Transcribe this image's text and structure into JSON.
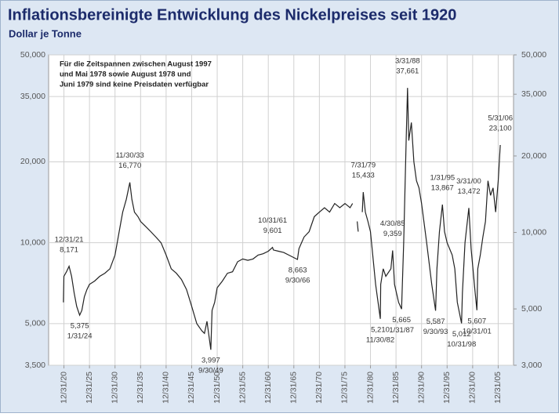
{
  "chart_data": {
    "type": "line",
    "title": "Inflationsbereinigte Entwicklung des Nickelpreises seit 1920",
    "subtitle": "Dollar je Tonne",
    "note": [
      "Für die Zeitspannen zwischen August 1997",
      "und Mai 1978 sowie August 1978 und",
      "Juni 1979 sind keine Preisdaten verfügbar"
    ],
    "log_scale": true,
    "grid": true,
    "xlim": [
      1918,
      2009
    ],
    "xticks": [
      {
        "value": 1921.0,
        "label": "12/31/20"
      },
      {
        "value": 1926.0,
        "label": "12/31/25"
      },
      {
        "value": 1931.0,
        "label": "12/31/30"
      },
      {
        "value": 1936.0,
        "label": "12/31/35"
      },
      {
        "value": 1941.0,
        "label": "12/31/40"
      },
      {
        "value": 1946.0,
        "label": "12/31/45"
      },
      {
        "value": 1951.0,
        "label": "12/31/50"
      },
      {
        "value": 1956.0,
        "label": "12/31/55"
      },
      {
        "value": 1961.0,
        "label": "12/31/60"
      },
      {
        "value": 1966.0,
        "label": "12/31/65"
      },
      {
        "value": 1971.0,
        "label": "12/31/70"
      },
      {
        "value": 1976.0,
        "label": "12/31/75"
      },
      {
        "value": 1981.0,
        "label": "12/31/80"
      },
      {
        "value": 1986.0,
        "label": "12/31/85"
      },
      {
        "value": 1991.0,
        "label": "12/31/90"
      },
      {
        "value": 1996.0,
        "label": "12/31/95"
      },
      {
        "value": 2001.0,
        "label": "12/31/00"
      },
      {
        "value": 2006.0,
        "label": "12/31/05"
      }
    ],
    "ylim": [
      3500,
      50000
    ],
    "yticks": [
      {
        "value": 3500,
        "label": "3,500"
      },
      {
        "value": 5000,
        "label": "5,000"
      },
      {
        "value": 10000,
        "label": "10,000"
      },
      {
        "value": 20000,
        "label": "20,000"
      },
      {
        "value": 35000,
        "label": "35,000"
      },
      {
        "value": 50000,
        "label": "50,000"
      }
    ],
    "y2lim": [
      3000,
      50000
    ],
    "y2ticks": [
      {
        "value": 3000,
        "label": "3,000"
      },
      {
        "value": 5000,
        "label": "5,000"
      },
      {
        "value": 10000,
        "label": "10,000"
      },
      {
        "value": 20000,
        "label": "20,000"
      },
      {
        "value": 35000,
        "label": "35,000"
      },
      {
        "value": 50000,
        "label": "50,000"
      }
    ],
    "series": [
      {
        "color": "#222222",
        "x": [
          1920.9,
          1921.0,
          1921.5,
          1922.0,
          1922.5,
          1923.0,
          1923.5,
          1924.08,
          1924.5,
          1925.0,
          1925.5,
          1926.0,
          1927.0,
          1928.0,
          1929.0,
          1930.0,
          1931.0,
          1932.0,
          1932.5,
          1933.2,
          1933.9,
          1934.3,
          1934.8,
          1935.5,
          1936.0,
          1937.0,
          1938.0,
          1939.0,
          1940.0,
          1941.0,
          1942.0,
          1943.0,
          1944.0,
          1945.0,
          1946.0,
          1947.0,
          1948.0,
          1948.5,
          1949.0,
          1949.75,
          1950.0,
          1950.5,
          1951.0,
          1952.0,
          1953.0,
          1954.0,
          1955.0,
          1956.0,
          1957.0,
          1958.0,
          1959.0,
          1960.0,
          1961.0,
          1961.83,
          1962.0,
          1963.0,
          1964.0,
          1965.0,
          1966.7,
          1967.0,
          1968.0,
          1969.0,
          1970.0,
          1971.0,
          1972.0,
          1973.0,
          1974.0,
          1975.0,
          1976.0,
          1977.0,
          1977.5,
          null,
          1978.4,
          1978.6,
          null,
          1979.4,
          1979.58,
          1980.0,
          1980.5,
          1981.0,
          1982.0,
          1982.92,
          1983.0,
          1983.5,
          1984.0,
          1985.0,
          1985.33,
          1985.7,
          1986.5,
          1987.08,
          1987.5,
          1988.0,
          1988.25,
          1988.5,
          1989.0,
          1989.5,
          1990.0,
          1990.5,
          1991.0,
          1992.0,
          1993.0,
          1993.75,
          1994.0,
          1994.5,
          1995.08,
          1995.5,
          1996.0,
          1997.0,
          1997.5,
          1998.0,
          1998.83,
          1999.0,
          1999.5,
          2000.25,
          2000.7,
          2001.5,
          2001.83,
          2002.0,
          2002.5,
          2003.0,
          2003.5,
          2004.0,
          2004.5,
          2005.0,
          2005.5,
          2006.0,
          2006.41
        ],
        "values": [
          6000,
          7500,
          7800,
          8171,
          7500,
          6500,
          5800,
          5375,
          5600,
          6300,
          6700,
          7000,
          7200,
          7500,
          7700,
          8000,
          9000,
          11500,
          13000,
          14500,
          16770,
          14500,
          13000,
          12500,
          12000,
          11500,
          11000,
          10500,
          10000,
          9000,
          8000,
          7700,
          7300,
          6700,
          5800,
          5000,
          4700,
          4600,
          5100,
          3997,
          5600,
          6000,
          6800,
          7200,
          7700,
          7800,
          8500,
          8700,
          8600,
          8700,
          9000,
          9100,
          9300,
          9601,
          9400,
          9300,
          9200,
          9000,
          8663,
          9500,
          10500,
          11000,
          12500,
          13000,
          13500,
          13000,
          14000,
          13500,
          14000,
          13500,
          14000,
          null,
          12000,
          11000,
          null,
          13000,
          15433,
          13000,
          12000,
          11000,
          7000,
          5210,
          7000,
          8000,
          7500,
          8000,
          9359,
          7000,
          6000,
          5665,
          10000,
          25000,
          37661,
          24000,
          28000,
          20000,
          17000,
          16000,
          14000,
          10000,
          7000,
          5587,
          8000,
          11000,
          13867,
          11000,
          10000,
          9000,
          8000,
          6000,
          5012,
          6500,
          10000,
          13472,
          9500,
          6500,
          5607,
          8000,
          9000,
          10500,
          12000,
          17000,
          15000,
          16000,
          13000,
          17000,
          23100
        ]
      }
    ],
    "annotations_high": [
      {
        "date": "12/31/21",
        "value": 8171,
        "label": "8,171"
      },
      {
        "date": "11/30/33",
        "value": 16770,
        "label": "16,770"
      },
      {
        "date": "10/31/61",
        "value": 9601,
        "label": "9,601"
      },
      {
        "date": "7/31/79",
        "value": 15433,
        "label": "15,433"
      },
      {
        "date": "4/30/85",
        "value": 9359,
        "label": "9,359"
      },
      {
        "date": "3/31/88",
        "value": 37661,
        "label": "37,661"
      },
      {
        "date": "1/31/95",
        "value": 13867,
        "label": "13,867"
      },
      {
        "date": "3/31/00",
        "value": 13472,
        "label": "13,472"
      },
      {
        "date": "5/31/06",
        "value": 23100,
        "label": "23,100"
      }
    ],
    "annotations_low": [
      {
        "date": "1/31/24",
        "value": 5375,
        "label": "5,375"
      },
      {
        "date": "9/30/49",
        "value": 3997,
        "label": "3,997"
      },
      {
        "date": "9/30/66",
        "value": 8663,
        "label": "8,663"
      },
      {
        "date": "11/30/82",
        "value": 5210,
        "label": "5,210"
      },
      {
        "date": "1/31/87",
        "value": 5665,
        "label": "5,665"
      },
      {
        "date": "9/30/93",
        "value": 5587,
        "label": "5,587"
      },
      {
        "date": "10/31/98",
        "value": 5012,
        "label": "5,012"
      },
      {
        "date": "10/31/01",
        "value": 5607,
        "label": "5,607"
      }
    ]
  }
}
